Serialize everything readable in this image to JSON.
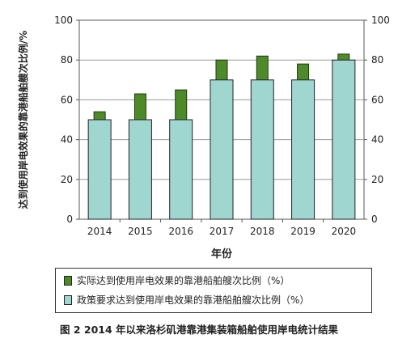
{
  "chart_data": {
    "type": "bar",
    "categories": [
      "2014",
      "2015",
      "2016",
      "2017",
      "2018",
      "2019",
      "2020"
    ],
    "series": [
      {
        "name": "实际达到使用岸电效果的靠港船舶艘次比例（%）",
        "values": [
          54,
          63,
          65,
          80,
          82,
          78,
          83
        ],
        "color": "#4f8a2a"
      },
      {
        "name": "政策要求达到使用岸电效果的靠港船舶艘次比例（%）",
        "values": [
          50,
          50,
          50,
          70,
          70,
          70,
          80
        ],
        "color": "#9fd6d0"
      }
    ],
    "xlabel": "年份",
    "ylabel": "达到使用岸电效果的靠港船舶艘次比例/%",
    "ylim": [
      0,
      100
    ],
    "yticks": [
      0,
      20,
      40,
      60,
      80,
      100
    ],
    "grid": true,
    "legend_position": "bottom"
  },
  "caption": "图 2 2014 年以来洛杉矶港靠港集装箱船舶使用岸电统计结果"
}
